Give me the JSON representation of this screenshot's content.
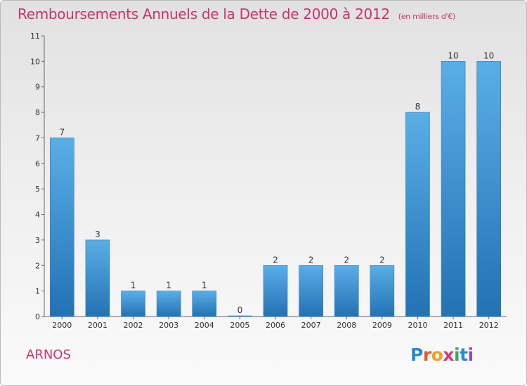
{
  "title": "Remboursements Annuels de la Dette de 2000 à 2012",
  "subtitle": "(en milliers d'€)",
  "commune": "ARNOS",
  "logo": {
    "letters": [
      "P",
      "r",
      "o",
      "x",
      "i",
      "t",
      "i"
    ],
    "colors": [
      "#2a8ad0",
      "#e85a2c",
      "#f0a020",
      "#d63a7a",
      "#3aa65a",
      "#2a8ad0",
      "#8a4cc0"
    ]
  },
  "colors": {
    "bar": "#3d92d6",
    "bar_light": "#5aaee6",
    "bar_dark": "#2272b4",
    "title": "#c8326e"
  },
  "chart_data": {
    "type": "bar",
    "categories": [
      "2000",
      "2001",
      "2002",
      "2003",
      "2004",
      "2005",
      "2006",
      "2007",
      "2008",
      "2009",
      "2010",
      "2011",
      "2012"
    ],
    "values": [
      7,
      3,
      1,
      1,
      1,
      0,
      2,
      2,
      2,
      2,
      8,
      10,
      10
    ],
    "value_labels": [
      "7",
      "3",
      "1",
      "1",
      "1",
      "0",
      "2",
      "2",
      "2",
      "2",
      "8",
      "10",
      "10"
    ],
    "yticks": [
      "0",
      "1",
      "2",
      "3",
      "4",
      "5",
      "6",
      "7",
      "8",
      "9",
      "10",
      "11"
    ],
    "ylim": [
      0,
      11
    ],
    "grid": false,
    "legend": "none"
  }
}
